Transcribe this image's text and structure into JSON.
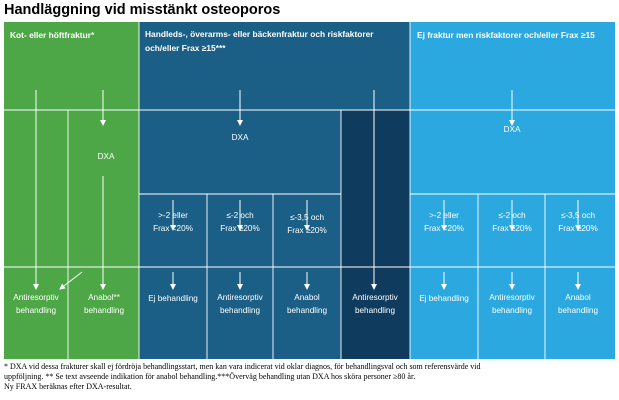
{
  "title": "Handläggning vid misstänkt osteoporos",
  "colors": {
    "green": "#4da746",
    "dark_blue": "#1b5f86",
    "navy": "#0e3b5e",
    "light_blue": "#2ba8e0"
  },
  "headers": {
    "green": "Kot- eller höftfraktur*",
    "dark_line1": "Handleds-, överarms- eller bäckenfraktur och riskfaktorer",
    "dark_line2": "och/eller Frax ≥15***",
    "light": "Ej fraktur men riskfaktorer och/eller Frax ≥15"
  },
  "nodes": {
    "dxa_green": "DXA",
    "dxa_dark": "DXA",
    "dxa_light": "DXA",
    "dark_crit1_l1": ">-2 eller",
    "dark_crit1_l2": "Frax <20%",
    "dark_crit2_l1": "≤-2 och",
    "dark_crit2_l2": "Frax ≥20%",
    "dark_crit3_l1": "≤-3,5 och",
    "dark_crit3_l2": "Frax ≥20%",
    "light_crit1_l1": ">-2 eller",
    "light_crit1_l2": "Frax <20%",
    "light_crit2_l1": "≤-2 och",
    "light_crit2_l2": "Frax ≥20%",
    "light_crit3_l1": "≤-3,5 och",
    "light_crit3_l2": "Frax ≥20%"
  },
  "outcomes": {
    "green_antires_l1": "Antiresorptiv",
    "green_antires_l2": "behandling",
    "green_anabol_l1": "Anabol**",
    "green_anabol_l2": "behandling",
    "dark_ej": "Ej behandling",
    "dark_antires_l1": "Antiresorptiv",
    "dark_antires_l2": "behandling",
    "dark_anabol_l1": "Anabol",
    "dark_anabol_l2": "behandling",
    "navy_antires_l1": "Antiresorptiv",
    "navy_antires_l2": "behandling",
    "light_ej": "Ej behandling",
    "light_antires_l1": "Antiresorptiv",
    "light_antires_l2": "behandling",
    "light_anabol_l1": "Anabol",
    "light_anabol_l2": "behandling"
  },
  "footnote": {
    "line1": "* DXA vid dessa frakturer skall ej fördröja behandlingsstart, men kan vara indicerat vid oklar diagnos, för behandlingsval och som referensvärde vid",
    "line2": "uppföljning. ** Se text avseende indikation för anabol behandling.***Överväg behandling utan DXA hos sköra personer ≥80 år.",
    "line3": "Ny FRAX beräknas efter DXA-resultat."
  }
}
